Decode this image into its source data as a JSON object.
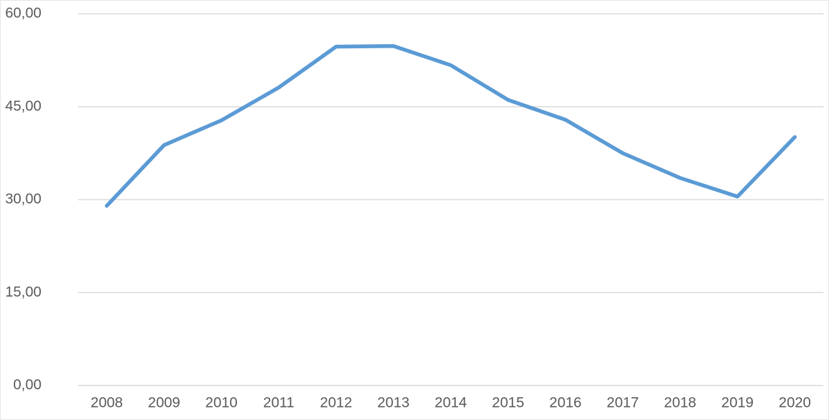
{
  "chart_data": {
    "type": "line",
    "categories": [
      "2008",
      "2009",
      "2010",
      "2011",
      "2012",
      "2013",
      "2014",
      "2015",
      "2016",
      "2017",
      "2018",
      "2019",
      "2020"
    ],
    "series": [
      {
        "color": "#5b9bd5",
        "values": [
          29.0,
          38.8,
          42.8,
          48.1,
          54.7,
          54.8,
          51.7,
          46.1,
          42.9,
          37.5,
          33.5,
          30.5,
          40.1
        ]
      }
    ],
    "ylim": [
      0,
      60
    ],
    "yticks": [
      {
        "value": 0,
        "label": "0,00"
      },
      {
        "value": 15,
        "label": "15,00"
      },
      {
        "value": 30,
        "label": "30,00"
      },
      {
        "value": 45,
        "label": "45,00"
      },
      {
        "value": 60,
        "label": "60,00"
      }
    ],
    "grid": true
  }
}
